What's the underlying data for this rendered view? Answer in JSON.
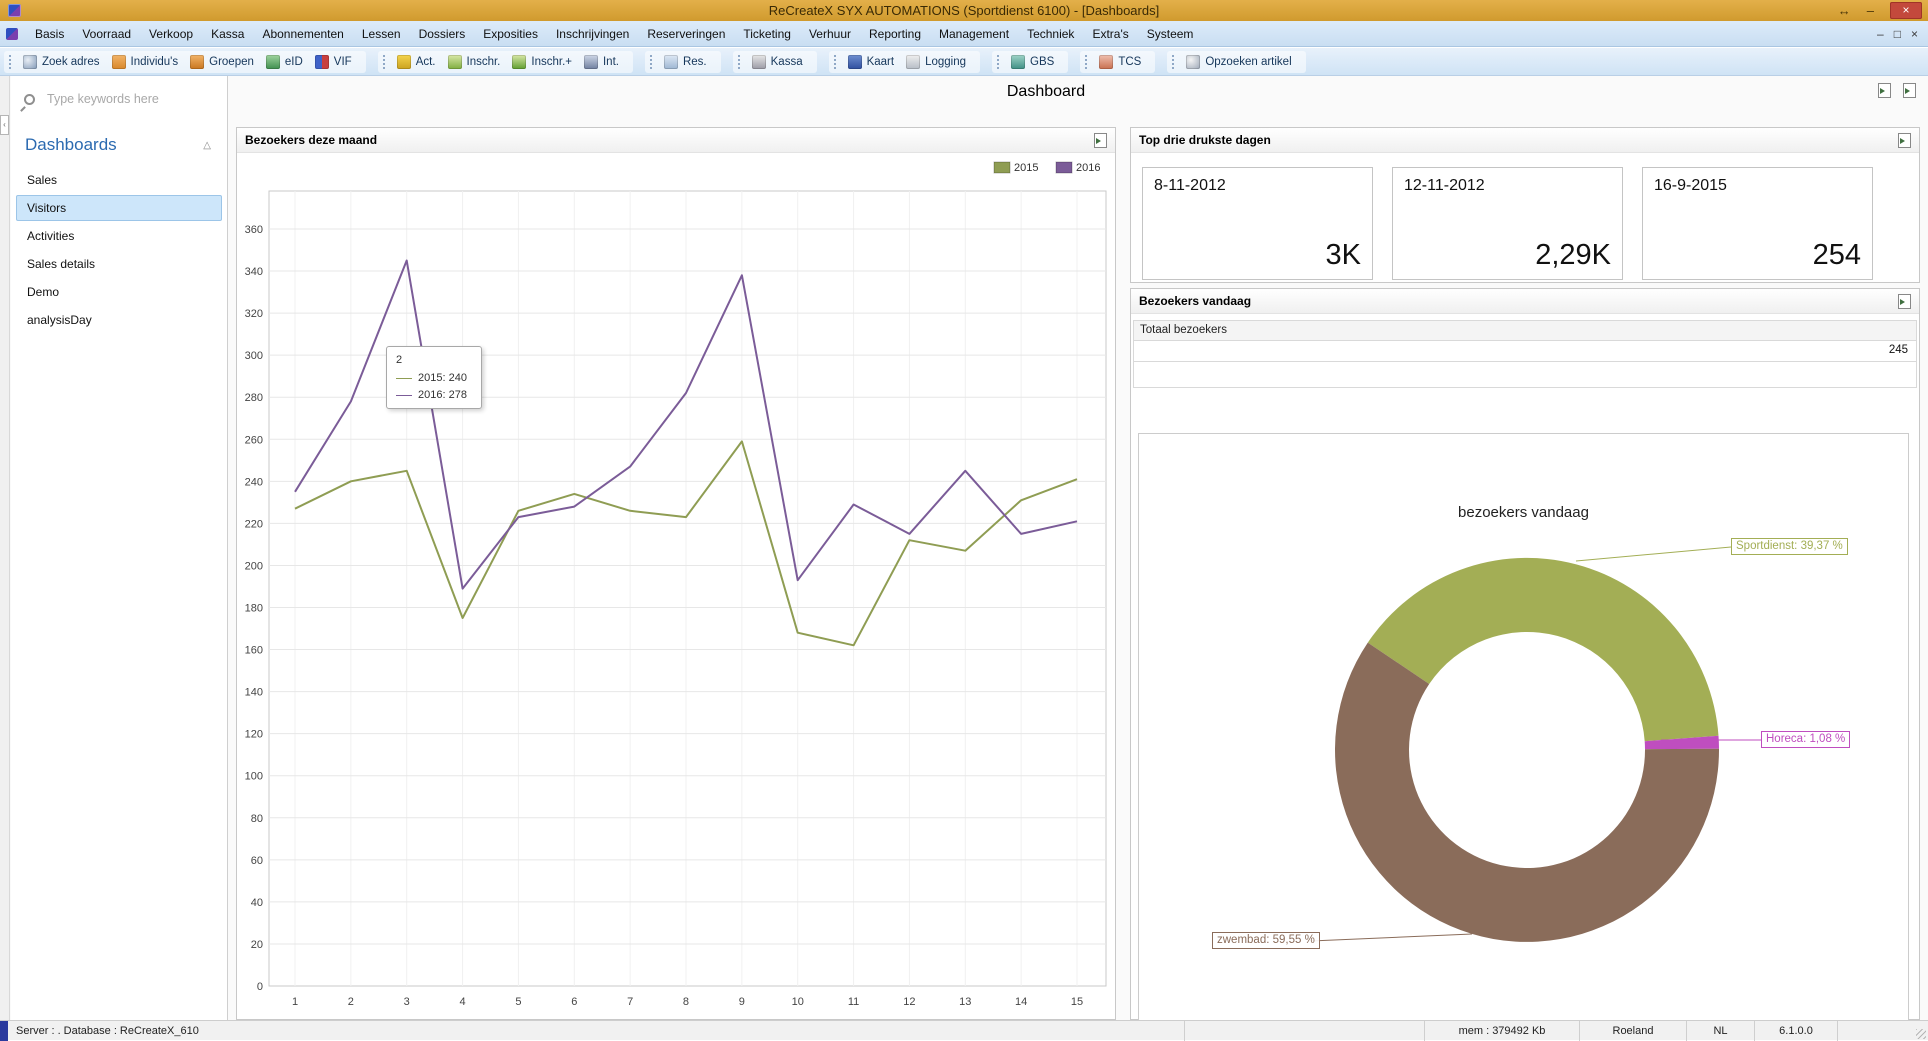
{
  "title_bar": {
    "title": "ReCreateX SYX AUTOMATIONS  (Sportdienst 6100) - [Dashboards]",
    "controls": {
      "nav": "↔",
      "minimize": "–",
      "close": "×"
    }
  },
  "menu": {
    "items": [
      "Basis",
      "Voorraad",
      "Verkoop",
      "Kassa",
      "Abonnementen",
      "Lessen",
      "Dossiers",
      "Exposities",
      "Inschrijvingen",
      "Reserveringen",
      "Ticketing",
      "Verhuur",
      "Reporting",
      "Management",
      "Techniek",
      "Extra's",
      "Systeem"
    ],
    "mdi_controls": [
      "–",
      "□",
      "×"
    ]
  },
  "toolbar": {
    "groups": [
      {
        "items": [
          {
            "label": "Zoek adres",
            "icon": "search-address-icon"
          },
          {
            "label": "Individu's",
            "icon": "individual-icon"
          },
          {
            "label": "Groepen",
            "icon": "groups-icon"
          },
          {
            "label": "eID",
            "icon": "eid-icon"
          },
          {
            "label": "VIF",
            "icon": "vif-icon"
          }
        ]
      },
      {
        "items": [
          {
            "label": "Act.",
            "icon": "activities-icon"
          },
          {
            "label": "Inschr.",
            "icon": "inschrijving-icon"
          },
          {
            "label": "Inschr.+",
            "icon": "inschrijving-plus-icon"
          },
          {
            "label": "Int.",
            "icon": "int-icon"
          }
        ]
      },
      {
        "items": [
          {
            "label": "Res.",
            "icon": "reservation-icon"
          }
        ]
      },
      {
        "items": [
          {
            "label": "Kassa",
            "icon": "kassa-icon"
          }
        ]
      },
      {
        "items": [
          {
            "label": "Kaart",
            "icon": "kaart-icon"
          },
          {
            "label": "Logging",
            "icon": "logging-icon"
          }
        ]
      },
      {
        "items": [
          {
            "label": "GBS",
            "icon": "gbs-icon"
          }
        ]
      },
      {
        "items": [
          {
            "label": "TCS",
            "icon": "tcs-icon"
          }
        ]
      },
      {
        "items": [
          {
            "label": "Opzoeken artikel",
            "icon": "search-article-icon"
          }
        ]
      }
    ]
  },
  "sidebar": {
    "search_placeholder": "Type keywords here",
    "header": "Dashboards",
    "collapse_icon": "△",
    "items": [
      "Sales",
      "Visitors",
      "Activities",
      "Sales details",
      "Demo",
      "analysisDay"
    ],
    "selected_index": 1
  },
  "content": {
    "title": "Dashboard"
  },
  "top_days": {
    "header": "Top drie drukste dagen",
    "cards": [
      {
        "date": "8-11-2012",
        "value": "3K"
      },
      {
        "date": "12-11-2012",
        "value": "2,29K"
      },
      {
        "date": "16-9-2015",
        "value": "254"
      }
    ]
  },
  "today": {
    "header": "Bezoekers vandaag",
    "table_header": "Totaal bezoekers",
    "total": "245"
  },
  "chart_data": [
    {
      "type": "line",
      "title": "Bezoekers deze maand",
      "x": [
        1,
        2,
        3,
        4,
        5,
        6,
        7,
        8,
        9,
        10,
        11,
        12,
        13,
        14,
        15
      ],
      "series": [
        {
          "name": "2015",
          "color": "#8f9d53",
          "values": [
            227,
            240,
            245,
            175,
            226,
            234,
            226,
            223,
            259,
            168,
            162,
            212,
            207,
            231,
            241
          ]
        },
        {
          "name": "2016",
          "color": "#7b5c98",
          "values": [
            235,
            278,
            345,
            189,
            223,
            228,
            247,
            282,
            338,
            193,
            229,
            215,
            245,
            215,
            221
          ]
        }
      ],
      "ylim": [
        0,
        360
      ],
      "ytick": 20,
      "grid": true,
      "legend_position": "top-right",
      "tooltip": {
        "x_label": "2",
        "entries": [
          {
            "series": "2015",
            "value": "240"
          },
          {
            "series": "2016",
            "value": "278"
          }
        ]
      }
    },
    {
      "type": "pie",
      "donut": true,
      "title": "bezoekers vandaag",
      "slices": [
        {
          "label": "Sportdienst",
          "pct": 39.37,
          "label_display": "Sportdienst: 39,37 %",
          "color": "#a3ae55"
        },
        {
          "label": "Horeca",
          "pct": 1.08,
          "label_display": "Horeca: 1,08 %",
          "color": "#bf4ebf"
        },
        {
          "label": "zwembad",
          "pct": 59.55,
          "label_display": "zwembad: 59,55 %",
          "color": "#8a6c5a"
        }
      ]
    }
  ],
  "status_bar": {
    "server": "Server : . Database : ReCreateX_610",
    "mem": "mem : 379492 Kb",
    "user": "Roeland",
    "locale": "NL",
    "version": "6.1.0.0"
  }
}
